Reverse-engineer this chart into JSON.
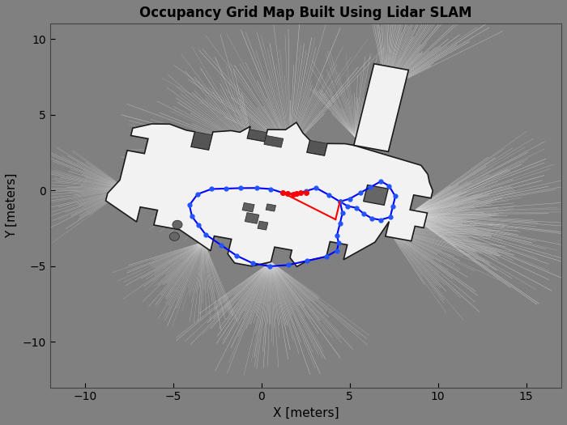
{
  "title": "Occupancy Grid Map Built Using Lidar SLAM",
  "xlabel": "X [meters]",
  "ylabel": "Y [meters]",
  "xlim": [
    -12,
    17
  ],
  "ylim": [
    -13,
    11
  ],
  "bg_color": "#808080",
  "floor_color": "#f2f2f2",
  "wall_dark": "#303030",
  "obstacle_color": "#707070",
  "trajectory_color": "#0000ff",
  "loop_color": "#ff0000",
  "lidar_ray_color": [
    0.88,
    0.88,
    0.88
  ],
  "rotation_deg": -12
}
